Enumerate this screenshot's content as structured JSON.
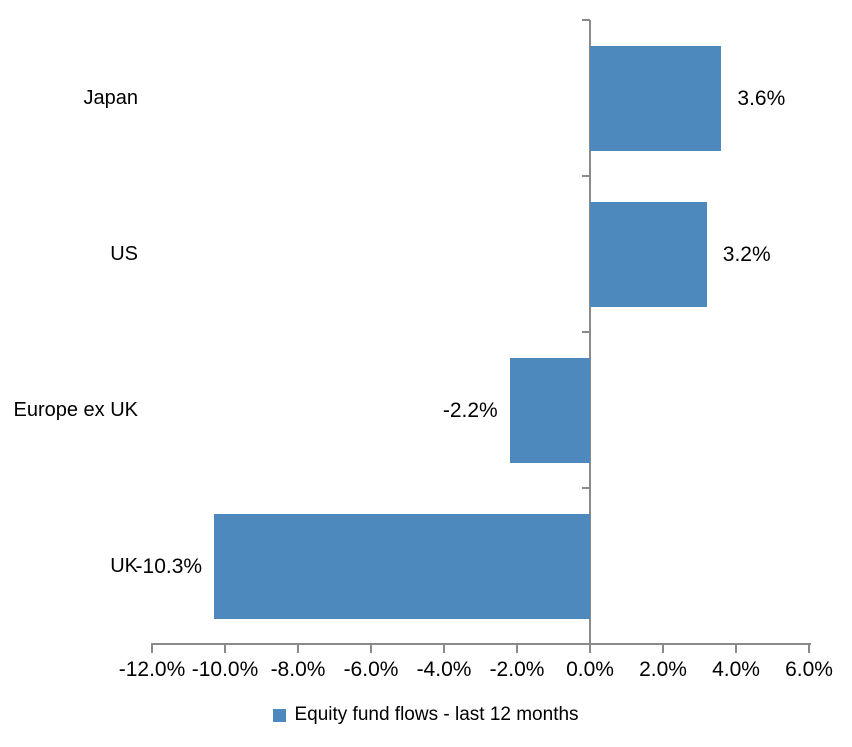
{
  "chart_data": {
    "type": "bar",
    "orientation": "horizontal",
    "title": "",
    "categories": [
      "Japan",
      "US",
      "Europe ex UK",
      "UK"
    ],
    "values": [
      3.6,
      3.2,
      -2.2,
      -10.3
    ],
    "value_labels": [
      "3.6%",
      "3.2%",
      "-2.2%",
      "-10.3%"
    ],
    "series_name": "Equity fund flows - last 12 months",
    "xlim": [
      -12,
      6
    ],
    "x_tick_step": 2,
    "x_tick_labels": [
      "-12.0%",
      "-10.0%",
      "-8.0%",
      "-6.0%",
      "-4.0%",
      "-2.0%",
      "0.0%",
      "2.0%",
      "4.0%",
      "6.0%"
    ],
    "grid": false,
    "legend_position": "bottom",
    "bar_color": "#4E89BE",
    "axis_color": "#8A8A8A",
    "text_color": "#000000"
  }
}
